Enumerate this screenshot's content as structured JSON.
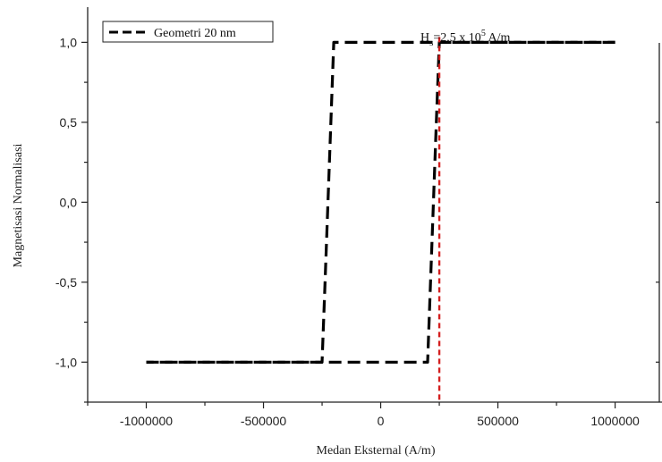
{
  "chart_data": {
    "type": "line",
    "xlabel": "Medan Eksternal (A/m)",
    "ylabel": "Magnetisasi Normalisasi",
    "xlim": [
      -1250000,
      1200000
    ],
    "ylim": [
      -1.25,
      1.22
    ],
    "x_ticks": [
      -1000000,
      -500000,
      0,
      500000,
      1000000
    ],
    "x_tick_labels": [
      "-1000000",
      "-500000",
      "0",
      "500000",
      "1000000"
    ],
    "y_ticks": [
      1.0,
      0.5,
      0.0,
      -0.5,
      -1.0
    ],
    "y_tick_labels": [
      "1,0",
      "0,5",
      "0,0",
      "-0,5",
      "-1,0"
    ],
    "legend_position": "top-left",
    "grid": false,
    "series": [
      {
        "name": "Geometri 20 nm",
        "color": "#000000",
        "style": "dashed",
        "branches": [
          {
            "x": [
              -1000000,
              -250000,
              -240000,
              -210000,
              -200000,
              1000000
            ],
            "y": [
              -1.0,
              -1.0,
              -0.6,
              0.6,
              1.0,
              1.0
            ]
          },
          {
            "x": [
              1000000,
              250000,
              240000,
              210000,
              200000,
              -1000000
            ],
            "y": [
              1.0,
              1.0,
              0.6,
              -0.6,
              -1.0,
              -1.0
            ]
          }
        ]
      }
    ],
    "annotation": {
      "base": "H",
      "subscript": "s",
      "text": "=2,5 x 10",
      "superscript": "5",
      "suffix": " A/m",
      "x_value": 250000
    },
    "reference_line": {
      "x": 250000,
      "color": "#d42020",
      "style": "dashed"
    }
  }
}
